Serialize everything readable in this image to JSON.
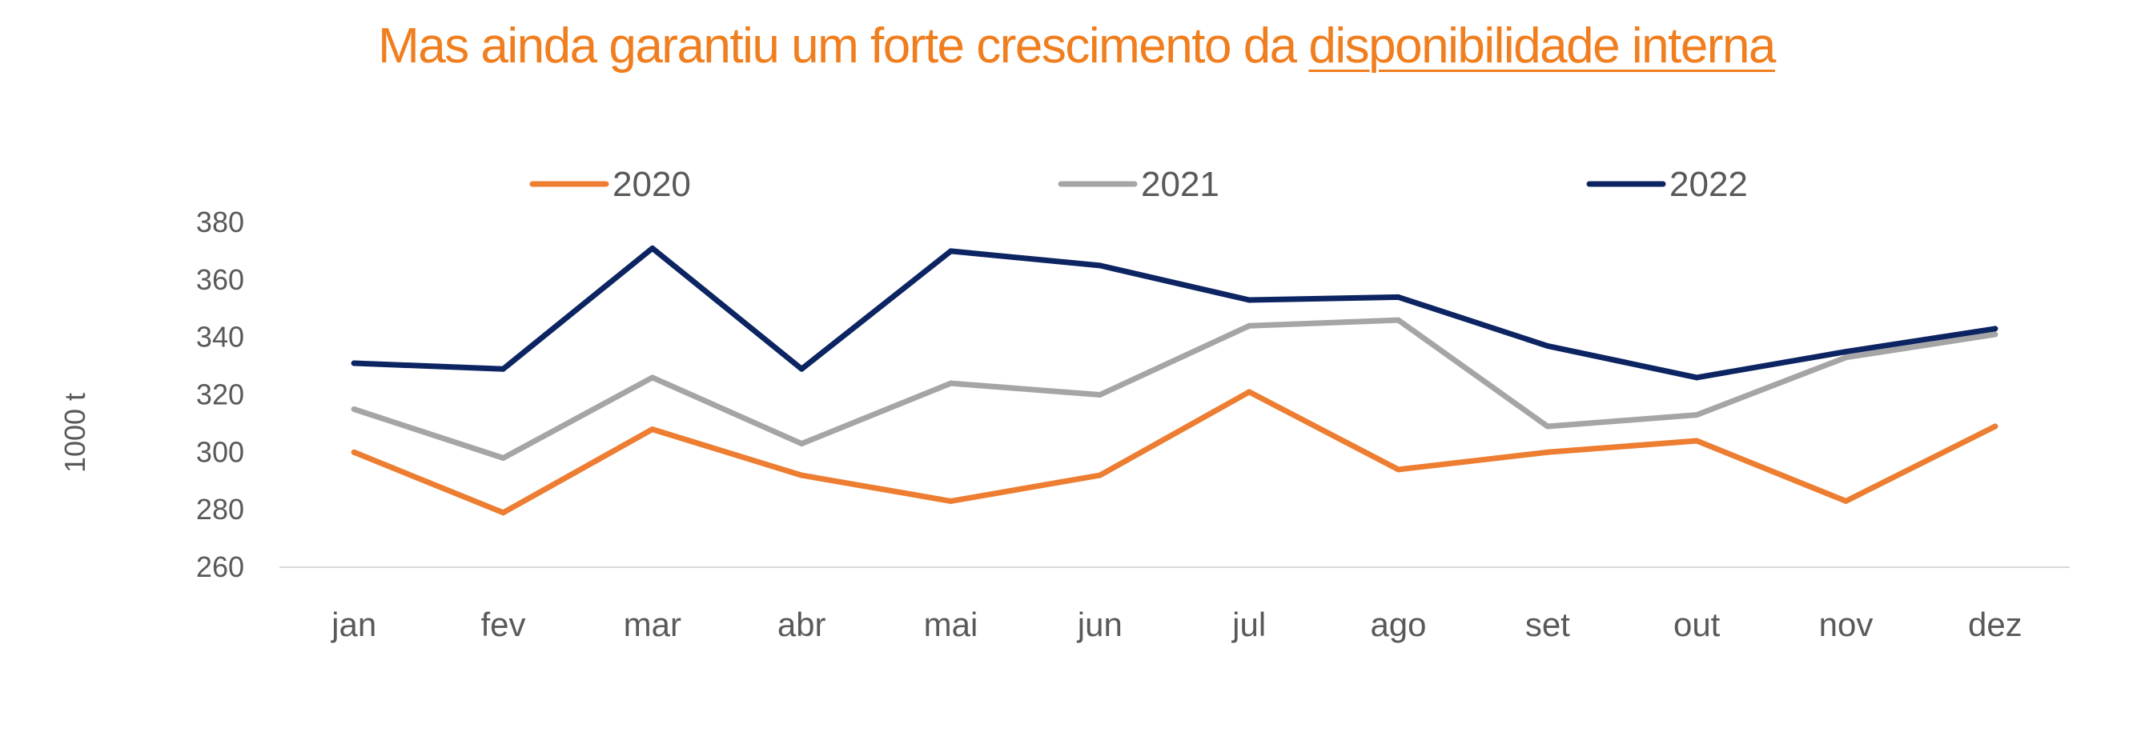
{
  "title": {
    "prefix": "Mas ainda garantiu um forte crescimento da ",
    "highlight": "disponibilidade interna",
    "color": "#F07E1E"
  },
  "chart_data": {
    "type": "line",
    "categories": [
      "jan",
      "fev",
      "mar",
      "abr",
      "mai",
      "jun",
      "jul",
      "ago",
      "set",
      "out",
      "nov",
      "dez"
    ],
    "series": [
      {
        "name": "2020",
        "color": "#ED7D31",
        "values": [
          300,
          279,
          308,
          292,
          283,
          292,
          321,
          294,
          300,
          304,
          283,
          309
        ]
      },
      {
        "name": "2021",
        "color": "#A5A5A5",
        "values": [
          315,
          298,
          326,
          303,
          324,
          320,
          344,
          346,
          309,
          313,
          333,
          341
        ]
      },
      {
        "name": "2022",
        "color": "#0C2461",
        "values": [
          331,
          329,
          371,
          329,
          370,
          365,
          353,
          354,
          337,
          326,
          335,
          343
        ]
      }
    ],
    "ylabel": "1000 t",
    "xlabel": "",
    "ylim": [
      260,
      380
    ],
    "yticks": [
      260,
      280,
      300,
      320,
      340,
      360,
      380
    ],
    "grid": false,
    "legend_position": "top"
  }
}
